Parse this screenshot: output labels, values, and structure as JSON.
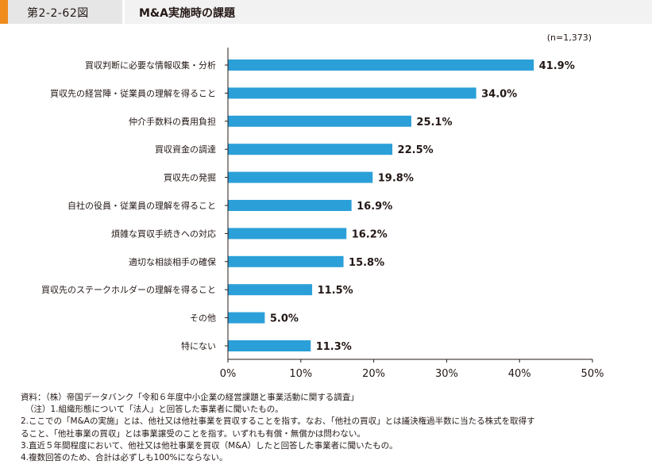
{
  "header": {
    "figure_number": "第2-2-62図",
    "title": "M&A実施時の課題"
  },
  "chart_data": {
    "type": "bar",
    "orientation": "horizontal",
    "title": "M&A実施時の課題",
    "sample_note": "(n=1,373)",
    "categories": [
      "買収判断に必要な情報収集・分析",
      "買収先の経営陣・従業員の理解を得ること",
      "仲介手数料の費用負担",
      "買収資金の調達",
      "買収先の発掘",
      "自社の役員・従業員の理解を得ること",
      "煩雑な買収手続きへの対応",
      "適切な相談相手の確保",
      "買収先のステークホルダーの理解を得ること",
      "その他",
      "特にない"
    ],
    "values": [
      41.9,
      34.0,
      25.1,
      22.5,
      19.8,
      16.9,
      16.2,
      15.8,
      11.5,
      5.0,
      11.3
    ],
    "value_labels": [
      "41.9%",
      "34.0%",
      "25.1%",
      "22.5%",
      "19.8%",
      "16.9%",
      "16.2%",
      "15.8%",
      "11.5%",
      "5.0%",
      "11.3%"
    ],
    "xlim": [
      0,
      50
    ],
    "xticks": [
      "0%",
      "10%",
      "20%",
      "30%",
      "40%",
      "50%"
    ],
    "grid": false,
    "bar_color": "#2b9fd8"
  },
  "notes": {
    "source": "資料：（株）帝国データバンク「令和６年度中小企業の経営課題と事業活動に関する調査」",
    "line1": "（注）1.組織形態について「法人」と回答した事業者に聞いたもの。",
    "line2a": "2.ここでの「M&Aの実施」とは、他社又は他社事業を買収することを指す。なお、「他社の買収」とは議決権過半数に当たる株式を取得す",
    "line2b": "ること、「他社事業の買収」とは事業譲受のことを指す。いずれも有償・無償かは問わない。",
    "line3": "3.直近５年間程度において、他社又は他社事業を買収（M&A）したと回答した事業者に聞いたもの。",
    "line4": "4.複数回答のため、合計は必ずしも100%にならない。"
  }
}
